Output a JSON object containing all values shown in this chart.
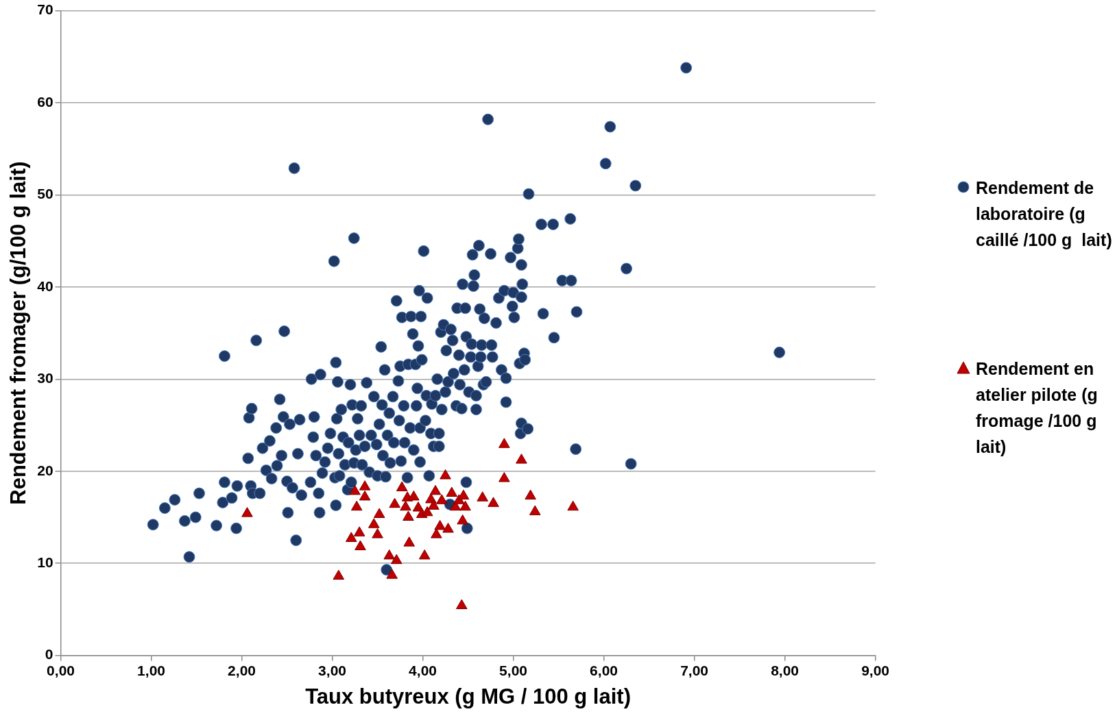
{
  "chart_data": {
    "type": "scatter",
    "xlabel": "Taux butyreux (g MG / 100 g lait)",
    "ylabel": "Rendement fromager (g/100 g lait)",
    "xlim": [
      0,
      9
    ],
    "xticks": [
      {
        "value": 0,
        "label": "0,00"
      },
      {
        "value": 1,
        "label": "1,00"
      },
      {
        "value": 2,
        "label": "2,00"
      },
      {
        "value": 3,
        "label": "3,00"
      },
      {
        "value": 4,
        "label": "4,00"
      },
      {
        "value": 5,
        "label": "5,00"
      },
      {
        "value": 6,
        "label": "6,00"
      },
      {
        "value": 7,
        "label": "7,00"
      },
      {
        "value": 8,
        "label": "8,00"
      },
      {
        "value": 9,
        "label": "9,00"
      }
    ],
    "ylim": [
      0,
      70
    ],
    "yticks": [
      0,
      10,
      20,
      30,
      40,
      50,
      60,
      70
    ],
    "grid": "y",
    "legend": "right",
    "series": [
      {
        "name": "Rendement de laboratoire (g caillé /100 g  lait)",
        "color": "#1f3864",
        "marker": "circle",
        "x": [
          1.02,
          1.15,
          1.26,
          1.37,
          1.42,
          1.49,
          1.53,
          1.72,
          1.81,
          1.79,
          1.81,
          1.89,
          1.94,
          1.95,
          2.07,
          2.08,
          2.11,
          2.1,
          2.12,
          2.16,
          2.2,
          2.23,
          2.27,
          2.31,
          2.33,
          2.38,
          2.39,
          2.42,
          2.44,
          2.46,
          2.47,
          2.5,
          2.51,
          2.53,
          2.56,
          2.58,
          2.6,
          2.62,
          2.64,
          2.66,
          2.76,
          2.77,
          2.79,
          2.8,
          2.82,
          2.85,
          2.87,
          2.86,
          2.89,
          2.92,
          2.95,
          2.98,
          3.02,
          3.03,
          3.04,
          3.04,
          3.05,
          3.06,
          3.07,
          3.08,
          3.1,
          3.12,
          3.14,
          3.17,
          3.18,
          3.2,
          3.21,
          3.22,
          3.24,
          3.24,
          3.26,
          3.28,
          3.3,
          3.32,
          3.33,
          3.36,
          3.38,
          3.41,
          3.43,
          3.46,
          3.49,
          3.5,
          3.52,
          3.54,
          3.55,
          3.56,
          3.58,
          3.59,
          3.6,
          3.61,
          3.63,
          3.64,
          3.67,
          3.68,
          3.71,
          3.73,
          3.74,
          3.75,
          3.76,
          3.77,
          3.79,
          3.8,
          3.83,
          3.84,
          3.86,
          3.87,
          3.89,
          3.9,
          3.92,
          3.93,
          3.94,
          3.95,
          3.96,
          3.97,
          3.97,
          3.98,
          3.99,
          4.01,
          4.03,
          4.04,
          4.05,
          4.07,
          4.09,
          4.1,
          4.12,
          4.14,
          4.16,
          4.18,
          4.18,
          4.2,
          4.21,
          4.23,
          4.25,
          4.26,
          4.28,
          4.3,
          4.31,
          4.33,
          4.34,
          4.37,
          4.38,
          4.4,
          4.41,
          4.43,
          4.44,
          4.46,
          4.47,
          4.48,
          4.48,
          4.49,
          4.51,
          4.53,
          4.54,
          4.55,
          4.56,
          4.57,
          4.59,
          4.59,
          4.61,
          4.62,
          4.63,
          4.64,
          4.65,
          4.67,
          4.68,
          4.7,
          4.72,
          4.75,
          4.76,
          4.77,
          4.81,
          4.84,
          4.87,
          4.9,
          4.92,
          4.92,
          4.97,
          4.99,
          5.0,
          5.01,
          5.05,
          5.06,
          5.07,
          5.08,
          5.09,
          5.09,
          5.09,
          5.1,
          5.12,
          5.13,
          5.16,
          5.17,
          5.31,
          5.33,
          5.44,
          5.45,
          5.54,
          5.63,
          5.64,
          5.7,
          5.69,
          6.02,
          6.07,
          6.25,
          6.3,
          6.35,
          6.91,
          7.94
        ],
        "values": [
          14.2,
          16.0,
          16.9,
          14.6,
          10.7,
          15.0,
          17.6,
          14.1,
          32.5,
          16.6,
          18.8,
          17.1,
          13.8,
          18.4,
          21.4,
          25.8,
          26.8,
          18.4,
          17.6,
          34.2,
          17.6,
          22.5,
          20.1,
          23.3,
          19.2,
          24.7,
          20.6,
          27.8,
          21.7,
          25.9,
          35.2,
          18.9,
          15.5,
          25.1,
          18.2,
          52.9,
          12.5,
          21.9,
          25.6,
          17.4,
          18.8,
          30.0,
          23.7,
          25.9,
          21.7,
          17.6,
          30.5,
          15.5,
          19.8,
          21.0,
          22.5,
          24.1,
          42.8,
          19.3,
          16.3,
          31.8,
          25.7,
          29.7,
          21.9,
          19.5,
          26.7,
          23.7,
          20.7,
          18.0,
          23.1,
          29.4,
          18.8,
          27.2,
          45.3,
          20.9,
          22.3,
          25.7,
          23.9,
          27.1,
          20.7,
          22.7,
          29.6,
          19.9,
          23.9,
          28.1,
          22.9,
          19.5,
          25.1,
          33.5,
          27.2,
          21.7,
          31.0,
          19.4,
          9.3,
          23.9,
          26.3,
          20.9,
          28.1,
          23.1,
          38.5,
          29.8,
          25.5,
          31.4,
          21.1,
          36.7,
          27.1,
          23.1,
          19.3,
          31.6,
          24.7,
          36.8,
          34.9,
          22.3,
          31.6,
          27.1,
          29.0,
          33.6,
          39.6,
          24.7,
          21.0,
          36.8,
          32.1,
          43.9,
          25.5,
          28.2,
          38.8,
          19.5,
          24.1,
          27.3,
          22.7,
          28.2,
          30.0,
          24.1,
          22.7,
          35.1,
          26.7,
          35.9,
          28.6,
          33.1,
          29.7,
          16.4,
          35.4,
          34.2,
          30.6,
          27.1,
          37.7,
          32.6,
          29.4,
          26.8,
          40.3,
          31.0,
          37.7,
          18.8,
          34.6,
          13.8,
          28.6,
          32.4,
          33.8,
          43.5,
          40.1,
          41.3,
          26.7,
          28.2,
          31.4,
          44.5,
          37.6,
          32.4,
          33.7,
          29.4,
          36.6,
          29.7,
          58.2,
          43.6,
          33.7,
          32.4,
          36.1,
          38.8,
          31.0,
          39.6,
          30.1,
          27.5,
          43.2,
          37.9,
          39.4,
          36.7,
          44.2,
          45.2,
          31.7,
          24.1,
          25.2,
          42.4,
          38.9,
          40.3,
          32.8,
          32.1,
          24.6,
          50.1,
          46.8,
          37.1,
          46.8,
          34.5,
          40.7,
          47.4,
          40.7,
          37.3,
          22.4,
          53.4,
          57.4,
          42.0,
          20.8,
          51.0,
          63.8,
          32.9
        ]
      },
      {
        "name": "Rendement en atelier pilote (g fromage /100 g  lait)",
        "color": "#c00000",
        "marker": "triangle",
        "x": [
          2.06,
          3.07,
          3.21,
          3.25,
          3.27,
          3.3,
          3.31,
          3.36,
          3.36,
          3.46,
          3.5,
          3.52,
          3.63,
          3.66,
          3.69,
          3.71,
          3.77,
          3.81,
          3.83,
          3.84,
          3.85,
          3.9,
          3.95,
          3.99,
          4.02,
          4.05,
          4.09,
          4.12,
          4.14,
          4.15,
          4.19,
          4.21,
          4.25,
          4.28,
          4.32,
          4.36,
          4.4,
          4.43,
          4.44,
          4.45,
          4.47,
          4.66,
          4.78,
          4.9,
          4.9,
          5.09,
          5.19,
          5.24,
          5.66
        ],
        "values": [
          15.4,
          8.6,
          12.7,
          17.8,
          16.1,
          13.3,
          11.8,
          18.3,
          17.2,
          14.2,
          13.1,
          15.3,
          10.8,
          8.7,
          16.4,
          10.3,
          18.2,
          16.1,
          17.1,
          15.0,
          12.2,
          17.2,
          16.0,
          15.3,
          10.8,
          15.5,
          16.9,
          16.2,
          17.8,
          13.1,
          14.0,
          16.8,
          19.5,
          13.7,
          17.6,
          16.1,
          16.8,
          5.4,
          14.6,
          17.3,
          16.1,
          17.1,
          16.5,
          19.2,
          22.9,
          21.2,
          17.3,
          15.6,
          16.1
        ]
      }
    ]
  }
}
